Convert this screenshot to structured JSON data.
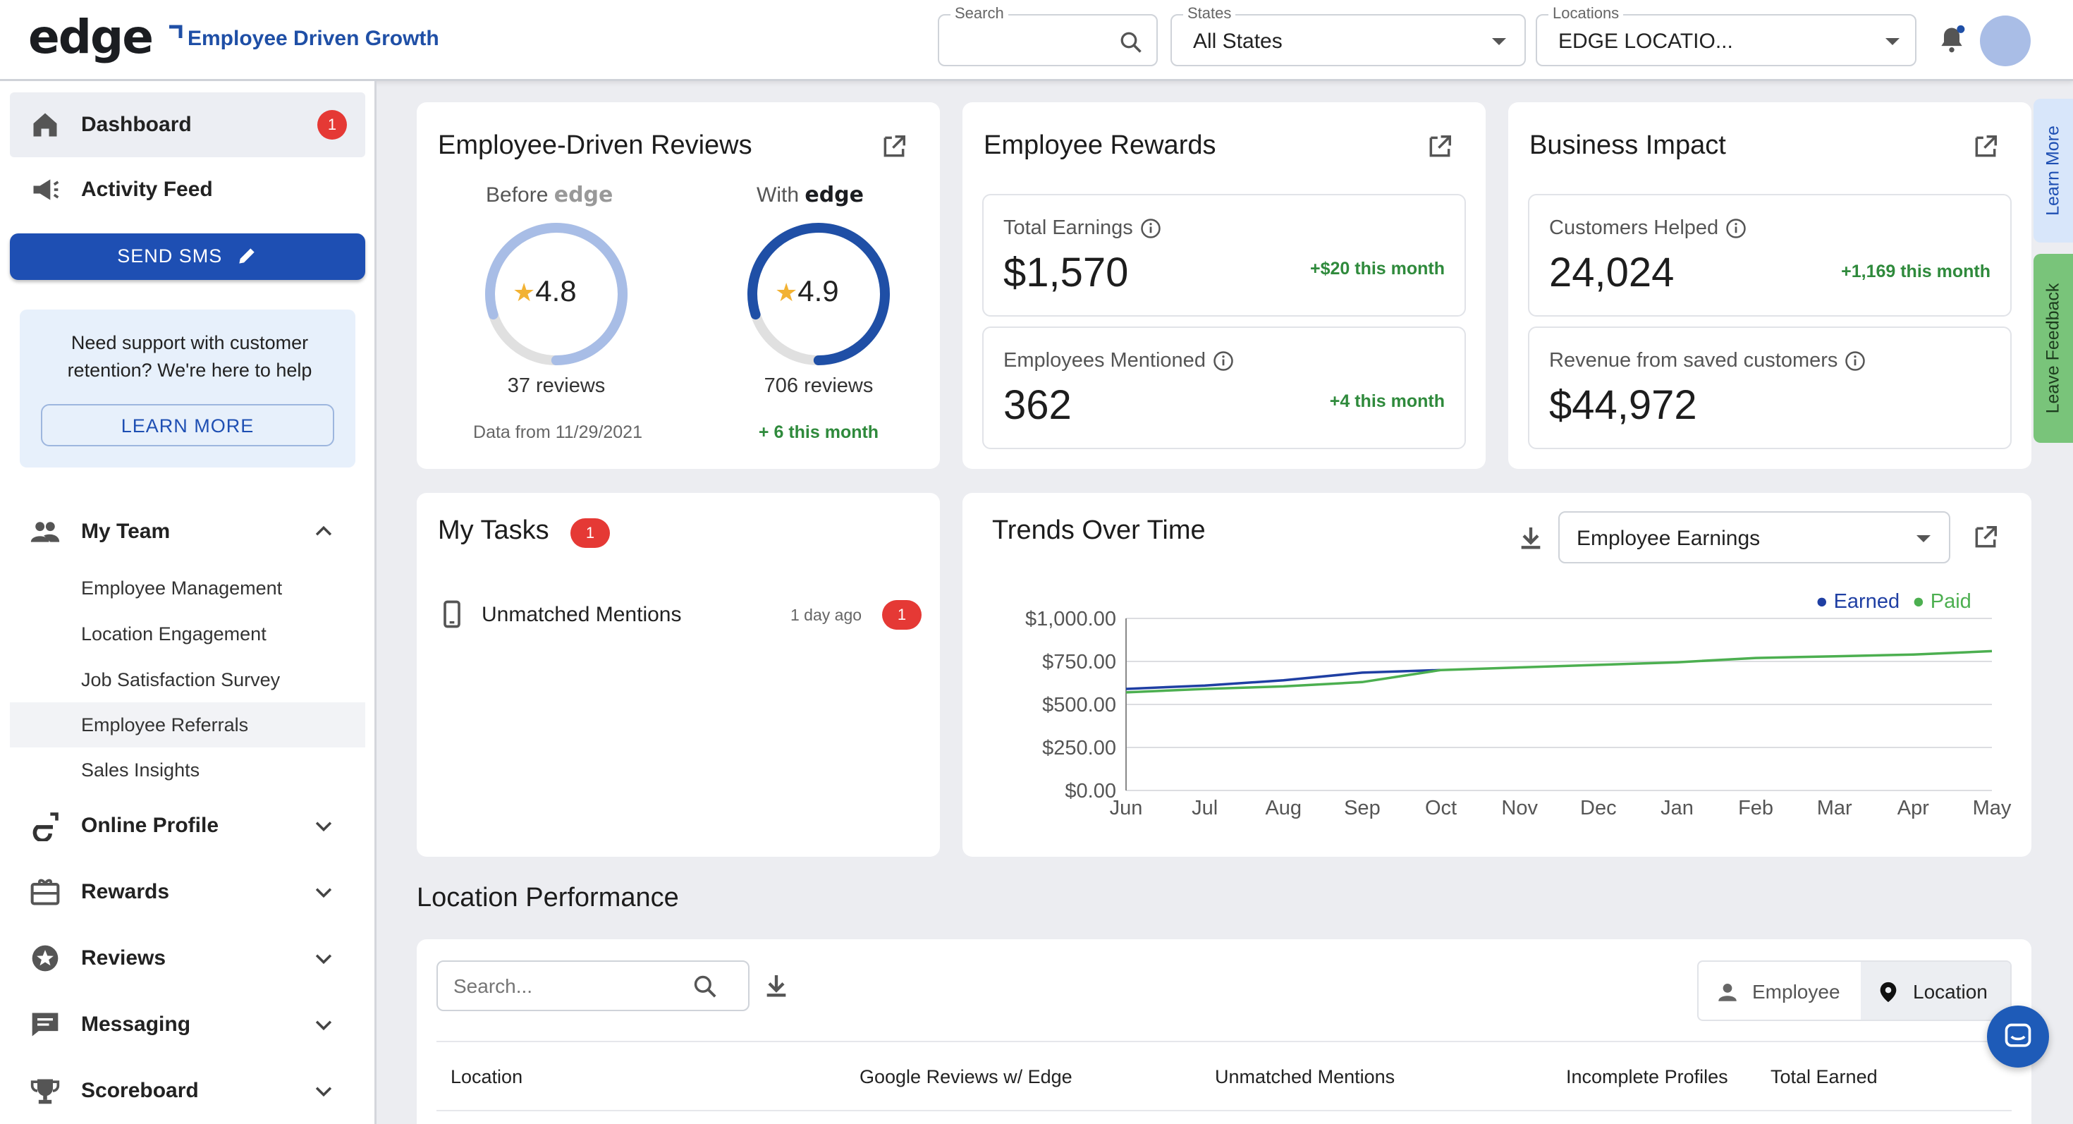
{
  "header": {
    "logo": "edge",
    "tagline": "Employee Driven Growth",
    "search": {
      "label": "Search",
      "value": ""
    },
    "states": {
      "label": "States",
      "value": "All States"
    },
    "locations": {
      "label": "Locations",
      "value": "EDGE LOCATIO..."
    }
  },
  "sidebar": {
    "dashboard": {
      "label": "Dashboard",
      "badge": "1"
    },
    "activity_feed": {
      "label": "Activity Feed"
    },
    "send_sms": {
      "label": "SEND SMS"
    },
    "support": {
      "text": "Need support with customer retention? We're here to help",
      "button": "LEARN MORE"
    },
    "my_team": {
      "label": "My Team",
      "items": [
        "Employee Management",
        "Location Engagement",
        "Job Satisfaction Survey",
        "Employee Referrals",
        "Sales Insights"
      ]
    },
    "online_profile": {
      "label": "Online Profile"
    },
    "rewards": {
      "label": "Rewards"
    },
    "reviews": {
      "label": "Reviews"
    },
    "messaging": {
      "label": "Messaging"
    },
    "scoreboard": {
      "label": "Scoreboard"
    }
  },
  "reviews_card": {
    "title": "Employee-Driven Reviews",
    "before": {
      "label": "Before",
      "brand": "edge",
      "rating": "4.8",
      "rating_fraction": 0.8,
      "reviews": "37 reviews",
      "footer": "Data from 11/29/2021"
    },
    "with": {
      "label": "With",
      "brand": "edge",
      "rating": "4.9",
      "rating_fraction": 0.8,
      "reviews": "706 reviews",
      "footer": "+ 6 this month"
    }
  },
  "rewards_card": {
    "title": "Employee Rewards",
    "total_earnings": {
      "label": "Total Earnings",
      "value": "$1,570",
      "delta": "+$20 this month"
    },
    "employees_mentioned": {
      "label": "Employees Mentioned",
      "value": "362",
      "delta": "+4 this month"
    }
  },
  "impact_card": {
    "title": "Business Impact",
    "customers_helped": {
      "label": "Customers Helped",
      "value": "24,024",
      "delta": "+1,169 this month"
    },
    "revenue_saved": {
      "label": "Revenue from saved customers",
      "value": "$44,972"
    }
  },
  "tasks_card": {
    "title": "My Tasks",
    "badge": "1",
    "items": [
      {
        "label": "Unmatched Mentions",
        "time": "1 day ago",
        "count": "1"
      }
    ]
  },
  "trends_card": {
    "title": "Trends Over Time",
    "select_value": "Employee Earnings",
    "legend": {
      "earned": "Earned",
      "paid": "Paid"
    }
  },
  "chart_data": {
    "type": "line",
    "x": [
      "Jun",
      "Jul",
      "Aug",
      "Sep",
      "Oct",
      "Nov",
      "Dec",
      "Jan",
      "Feb",
      "Mar",
      "Apr",
      "May"
    ],
    "series": [
      {
        "name": "Earned",
        "color": "#1f3fa3",
        "values": [
          590,
          610,
          640,
          685,
          700,
          null,
          null,
          null,
          null,
          null,
          null,
          null
        ]
      },
      {
        "name": "Paid",
        "color": "#4caf50",
        "values": [
          570,
          590,
          605,
          630,
          700,
          715,
          730,
          745,
          770,
          780,
          790,
          810
        ]
      }
    ],
    "ylim": [
      0,
      1000
    ],
    "yticks": [
      "$1,000.00",
      "$750.00",
      "$500.00",
      "$250.00",
      "$0.00"
    ],
    "ytick_values": [
      1000,
      750,
      500,
      250,
      0
    ],
    "legend": "top-right",
    "grid": true
  },
  "location_perf": {
    "title": "Location Performance",
    "search_placeholder": "Search...",
    "toggle": {
      "employee": "Employee",
      "location": "Location"
    },
    "columns": [
      "Location",
      "Google Reviews w/ Edge",
      "Unmatched Mentions",
      "Incomplete Profiles",
      "Total Earned"
    ]
  },
  "side_tabs": {
    "learn_more": "Learn More",
    "leave_feedback": "Leave Feedback"
  },
  "colors": {
    "brand": "#1f4fa6",
    "primary_button": "#1e4fb3",
    "delta_green": "#2f8a3c",
    "badge_red": "#e53935",
    "earned_line": "#1f3fa3",
    "paid_line": "#4caf50"
  }
}
